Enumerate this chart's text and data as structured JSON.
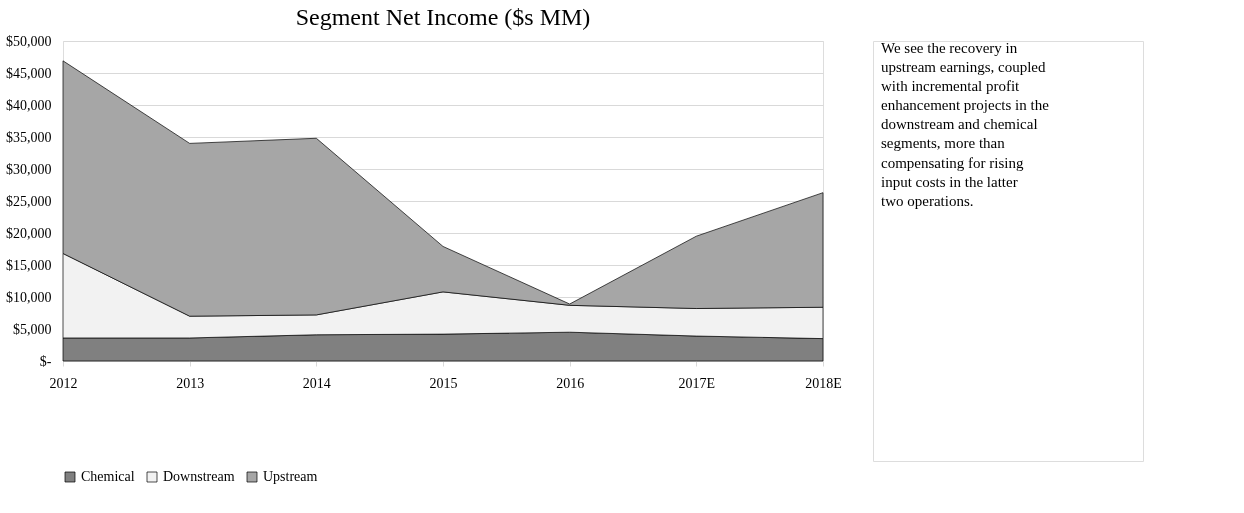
{
  "chart_data": {
    "type": "area",
    "title": "Segment Net Income ($s MM)",
    "stacked": true,
    "categories": [
      "2012",
      "2013",
      "2014",
      "2015",
      "2016",
      "2017E",
      "2018E"
    ],
    "series": [
      {
        "name": "Chemical",
        "color": "#808080",
        "values": [
          3600,
          3600,
          4100,
          4200,
          4500,
          3900,
          3500
        ]
      },
      {
        "name": "Downstream",
        "color": "#f2f2f2",
        "values": [
          13200,
          3400,
          3100,
          6600,
          4200,
          4300,
          4900
        ]
      },
      {
        "name": "Upstream",
        "color": "#a6a6a6",
        "values": [
          30100,
          27000,
          27600,
          7100,
          200,
          11300,
          17900
        ]
      }
    ],
    "ylim": [
      0,
      50000
    ],
    "yticks": [
      {
        "value": 0,
        "label": "$-"
      },
      {
        "value": 5000,
        "label": "$5,000"
      },
      {
        "value": 10000,
        "label": "$10,000"
      },
      {
        "value": 15000,
        "label": "$15,000"
      },
      {
        "value": 20000,
        "label": "$20,000"
      },
      {
        "value": 25000,
        "label": "$25,000"
      },
      {
        "value": 30000,
        "label": "$30,000"
      },
      {
        "value": 35000,
        "label": "$35,000"
      },
      {
        "value": 40000,
        "label": "$40,000"
      },
      {
        "value": 45000,
        "label": "$45,000"
      },
      {
        "value": 50000,
        "label": "$50,000"
      }
    ],
    "grid": "y",
    "legend": "bottom",
    "annotations": [
      "We see the recovery in upstream earnings, coupled with incremental profit enhancement projects in the downstream and chemical segments, more than compensating for rising input costs in the latter two operations."
    ]
  }
}
